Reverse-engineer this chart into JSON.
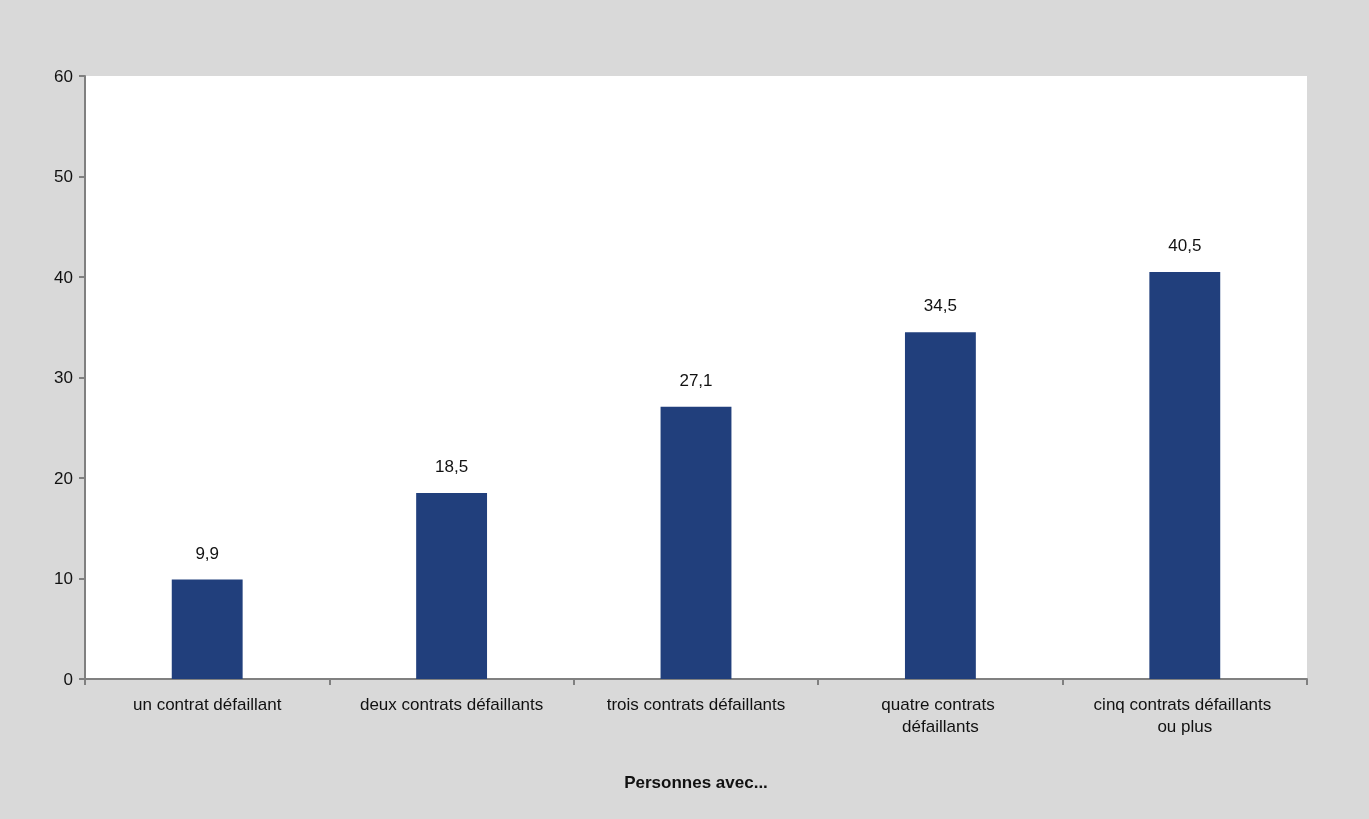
{
  "chart_data": {
    "type": "bar",
    "xlabel": "Personnes avec...",
    "categories": [
      "un contrat défaillant",
      "deux contrats défaillants",
      "trois contrats défaillants",
      "quatre contrats défaillants",
      "cinq contrats défaillants ou plus"
    ],
    "values": [
      9.9,
      18.5,
      27.1,
      34.5,
      40.5
    ],
    "value_labels": [
      "9,9",
      "18,5",
      "27,1",
      "34,5",
      "40,5"
    ],
    "color": "#213f7c",
    "ylim": [
      0,
      60
    ],
    "yticks": [
      0,
      10,
      20,
      30,
      40,
      50,
      60
    ],
    "grid": false
  }
}
